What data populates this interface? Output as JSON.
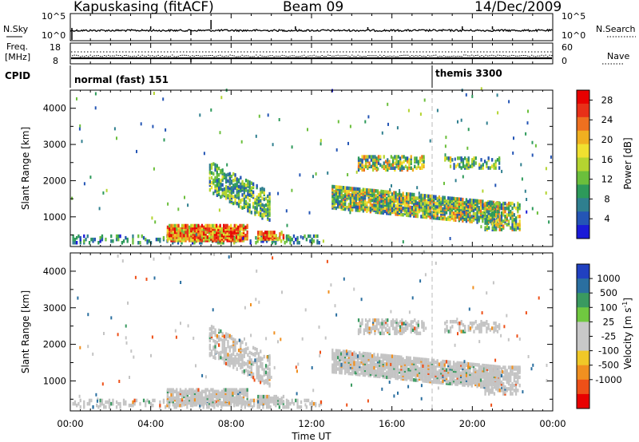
{
  "header": {
    "station": "Kapuskasing (fitACF)",
    "beam": "Beam 09",
    "date": "14/Dec/2009"
  },
  "top_panel": {
    "left_label": "N.Sky",
    "left_top_tick": "10^5",
    "left_bottom_tick": "10^0",
    "right_label": "N.Search",
    "right_top_tick": "10^5",
    "right_bottom_tick": "10^0"
  },
  "freq_panel": {
    "left_label_line1": "Freq.",
    "left_label_line2": "[MHz]",
    "left_top_tick": "18",
    "left_bottom_tick": "8",
    "right_label": "Nave",
    "right_top_tick": "60",
    "right_bottom_tick": "0"
  },
  "cpid_panel": {
    "label": "CPID",
    "modes": [
      {
        "name": "normal (fast) 151",
        "start_hour": 0
      },
      {
        "name": "themis 3300",
        "start_hour": 18
      }
    ]
  },
  "chart_data": [
    {
      "type": "heatmap",
      "panel": "power",
      "ylabel": "Slant Range [km]",
      "xlabel": "",
      "x_range_hours": [
        0,
        24
      ],
      "ylim": [
        180,
        4500
      ],
      "yticks": [
        1000,
        2000,
        3000,
        4000
      ],
      "colorbar": {
        "label": "Power [dB]",
        "ticks": [
          4,
          8,
          12,
          16,
          20,
          24,
          28
        ],
        "colors": [
          "#1a1ad8",
          "#2455b5",
          "#2f7f8f",
          "#2d9a5a",
          "#6bbf3c",
          "#b4d430",
          "#f0e030",
          "#f0b020",
          "#ee7020",
          "#e83018",
          "#e80000"
        ]
      },
      "echo_regions": [
        {
          "t0": 0.1,
          "t1": 12.5,
          "r0": 190,
          "r1": 420,
          "density": 0.22,
          "value_range": [
            2,
            14
          ]
        },
        {
          "t0": 4.8,
          "t1": 8.8,
          "r0": 300,
          "r1": 720,
          "density": 0.85,
          "value_range": [
            12,
            30
          ]
        },
        {
          "t0": 9.3,
          "t1": 10.6,
          "r0": 340,
          "r1": 540,
          "density": 0.8,
          "value_range": [
            14,
            30
          ]
        },
        {
          "t0": 6.9,
          "t1": 9.9,
          "r0": 1650,
          "r1": 2480,
          "density": 0.5,
          "value_range": [
            3,
            18
          ],
          "slope": -280
        },
        {
          "t0": 13.0,
          "t1": 21.3,
          "r0": 1200,
          "r1": 1800,
          "density": 0.75,
          "value_range": [
            3,
            24
          ],
          "slope": -55
        },
        {
          "t0": 14.3,
          "t1": 17.6,
          "r0": 2250,
          "r1": 2650,
          "density": 0.45,
          "value_range": [
            4,
            24
          ]
        },
        {
          "t0": 18.6,
          "t1": 21.3,
          "r0": 2300,
          "r1": 2600,
          "density": 0.3,
          "value_range": [
            3,
            20
          ]
        },
        {
          "t0": 20.6,
          "t1": 22.4,
          "r0": 600,
          "r1": 1350,
          "density": 0.45,
          "value_range": [
            3,
            24
          ]
        }
      ]
    },
    {
      "type": "heatmap",
      "panel": "velocity",
      "ylabel": "Slant Range [km]",
      "xlabel": "Time UT",
      "x_range_hours": [
        0,
        24
      ],
      "x_tick_labels": [
        "00:00",
        "04:00",
        "08:00",
        "12:00",
        "16:00",
        "20:00",
        "00:00"
      ],
      "ylim": [
        180,
        4500
      ],
      "yticks": [
        1000,
        2000,
        3000,
        4000
      ],
      "colorbar": {
        "label": "Velocity [m s-1]",
        "ticks": [
          "1000",
          "500",
          "100",
          "25",
          "-25",
          "-100",
          "-500",
          "-1000"
        ],
        "colors": [
          "#2040c0",
          "#2a6fa0",
          "#3a9a60",
          "#70c840",
          "#c8c8c8",
          "#c8c8c8",
          "#f0c828",
          "#f09020",
          "#ee5018",
          "#e80000"
        ]
      },
      "echo_regions": [
        {
          "t0": 0.1,
          "t1": 12.5,
          "r0": 190,
          "r1": 420,
          "density": 0.3,
          "value_range": [
            -25,
            25
          ]
        },
        {
          "t0": 4.8,
          "t1": 8.8,
          "r0": 300,
          "r1": 720,
          "density": 0.7,
          "value_range": [
            -25,
            25
          ]
        },
        {
          "t0": 9.3,
          "t1": 10.6,
          "r0": 340,
          "r1": 540,
          "density": 0.7,
          "value_range": [
            -25,
            25
          ]
        },
        {
          "t0": 6.9,
          "t1": 9.9,
          "r0": 1650,
          "r1": 2480,
          "density": 0.45,
          "value_range": [
            -25,
            25
          ],
          "slope": -280
        },
        {
          "t0": 13.0,
          "t1": 21.3,
          "r0": 1200,
          "r1": 1800,
          "density": 0.75,
          "value_range": [
            -25,
            25
          ],
          "slope": -55
        },
        {
          "t0": 14.3,
          "t1": 17.6,
          "r0": 2250,
          "r1": 2650,
          "density": 0.45,
          "value_range": [
            -25,
            25
          ]
        },
        {
          "t0": 18.6,
          "t1": 21.3,
          "r0": 2300,
          "r1": 2600,
          "density": 0.3,
          "value_range": [
            -25,
            25
          ]
        },
        {
          "t0": 20.6,
          "t1": 22.4,
          "r0": 600,
          "r1": 1350,
          "density": 0.45,
          "value_range": [
            -25,
            25
          ]
        }
      ]
    }
  ],
  "colorbar_labels": {
    "power": "Power [dB]",
    "velocity_main": "Velocity [m s",
    "velocity_sup": "-1",
    "velocity_close": "]"
  }
}
